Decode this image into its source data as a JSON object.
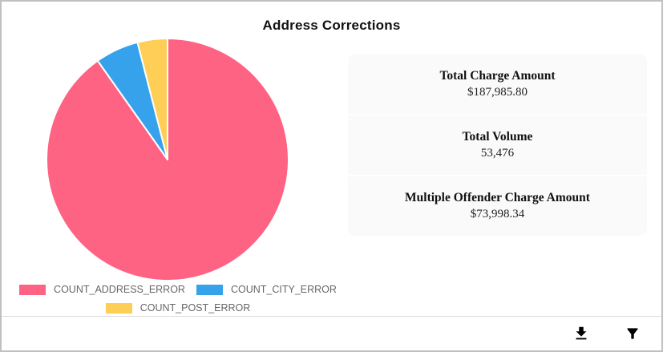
{
  "title": "Address Corrections",
  "chart_data": {
    "type": "pie",
    "title": "Address Corrections",
    "labels": [
      "COUNT_ADDRESS_ERROR",
      "COUNT_CITY_ERROR",
      "COUNT_POST_ERROR"
    ],
    "values": [
      90.2,
      5.8,
      4.0
    ],
    "unit": "percent_estimated_from_slice_angles",
    "colors": [
      "#FF6384",
      "#36A2EB",
      "#FFCE56"
    ],
    "slice_border_color": "#FFFFFF",
    "legend_position": "bottom",
    "legend_text_color": "#666666"
  },
  "stats": {
    "items": [
      {
        "label": "Total Charge Amount",
        "value": "$187,985.80"
      },
      {
        "label": "Total Volume",
        "value": "53,476"
      },
      {
        "label": "Multiple Offender Charge Amount",
        "value": "$73,998.34"
      }
    ]
  },
  "toolbar": {
    "icon_color": "#1976D2",
    "icons": [
      "download-icon",
      "filter-icon"
    ]
  }
}
